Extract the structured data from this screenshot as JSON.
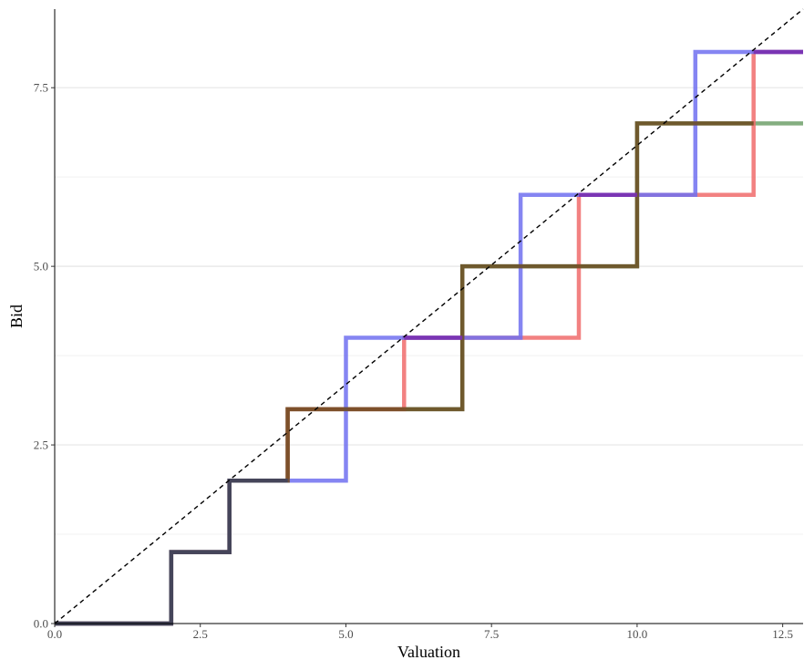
{
  "chart_data": {
    "type": "line",
    "xlabel": "Valuation",
    "ylabel": "Bid",
    "xlim": [
      0,
      12.85
    ],
    "ylim": [
      0,
      8.6
    ],
    "x_ticks": [
      0.0,
      2.5,
      5.0,
      7.5,
      10.0,
      12.5
    ],
    "x_tick_labels": [
      "0.0",
      "2.5",
      "5.0",
      "7.5",
      "10.0",
      "12.5"
    ],
    "y_ticks": [
      0.0,
      2.5,
      5.0,
      7.5
    ],
    "y_tick_labels": [
      "0.0",
      "2.5",
      "5.0",
      "7.5"
    ],
    "grid": "horizontal major and minor lines",
    "line_style": "step",
    "series": [
      {
        "color": "#6fa06a",
        "points": [
          [
            0,
            0
          ],
          [
            2,
            0
          ],
          [
            2,
            1
          ],
          [
            3,
            1
          ],
          [
            3,
            2
          ],
          [
            4,
            2
          ],
          [
            4,
            3
          ],
          [
            7,
            3
          ],
          [
            7,
            5
          ],
          [
            10,
            5
          ],
          [
            10,
            7
          ],
          [
            12.85,
            7
          ]
        ]
      },
      {
        "color": "#f06b6b",
        "points": [
          [
            0,
            0
          ],
          [
            2,
            0
          ],
          [
            2,
            1
          ],
          [
            3,
            1
          ],
          [
            3,
            2
          ],
          [
            4,
            2
          ],
          [
            4,
            3
          ],
          [
            6,
            3
          ],
          [
            6,
            4
          ],
          [
            9,
            4
          ],
          [
            9,
            6
          ],
          [
            12,
            6
          ],
          [
            12,
            8
          ],
          [
            12.85,
            8
          ]
        ]
      },
      {
        "color": "#7070f0",
        "points": [
          [
            0,
            0
          ],
          [
            2,
            0
          ],
          [
            2,
            1
          ],
          [
            3,
            1
          ],
          [
            3,
            2
          ],
          [
            5,
            2
          ],
          [
            5,
            4
          ],
          [
            8,
            4
          ],
          [
            8,
            6
          ],
          [
            11,
            6
          ],
          [
            11,
            8
          ],
          [
            12.85,
            8
          ]
        ]
      },
      {
        "color": "#6b4a1e",
        "points": [
          [
            0,
            0
          ],
          [
            2,
            0
          ],
          [
            2,
            1
          ],
          [
            3,
            1
          ],
          [
            3,
            2
          ],
          [
            4,
            2
          ],
          [
            4,
            3
          ],
          [
            7,
            3
          ],
          [
            7,
            5
          ],
          [
            10,
            5
          ],
          [
            10,
            7
          ],
          [
            12,
            7
          ]
        ]
      },
      {
        "color": "#7a2fb0",
        "points": [
          [
            6,
            4
          ],
          [
            7,
            4
          ],
          [
            9,
            6
          ],
          [
            10,
            6
          ],
          [
            12,
            8
          ],
          [
            12.85,
            8
          ]
        ]
      },
      {
        "color": "#3e4360",
        "points": [
          [
            0,
            0
          ],
          [
            2,
            0
          ],
          [
            2,
            1
          ],
          [
            3,
            1
          ],
          [
            3,
            2
          ],
          [
            4,
            2
          ]
        ]
      }
    ],
    "reference_line": {
      "style": "dashed",
      "color": "#000000",
      "points": [
        [
          0,
          0
        ],
        [
          12.85,
          8.6
        ]
      ]
    }
  }
}
